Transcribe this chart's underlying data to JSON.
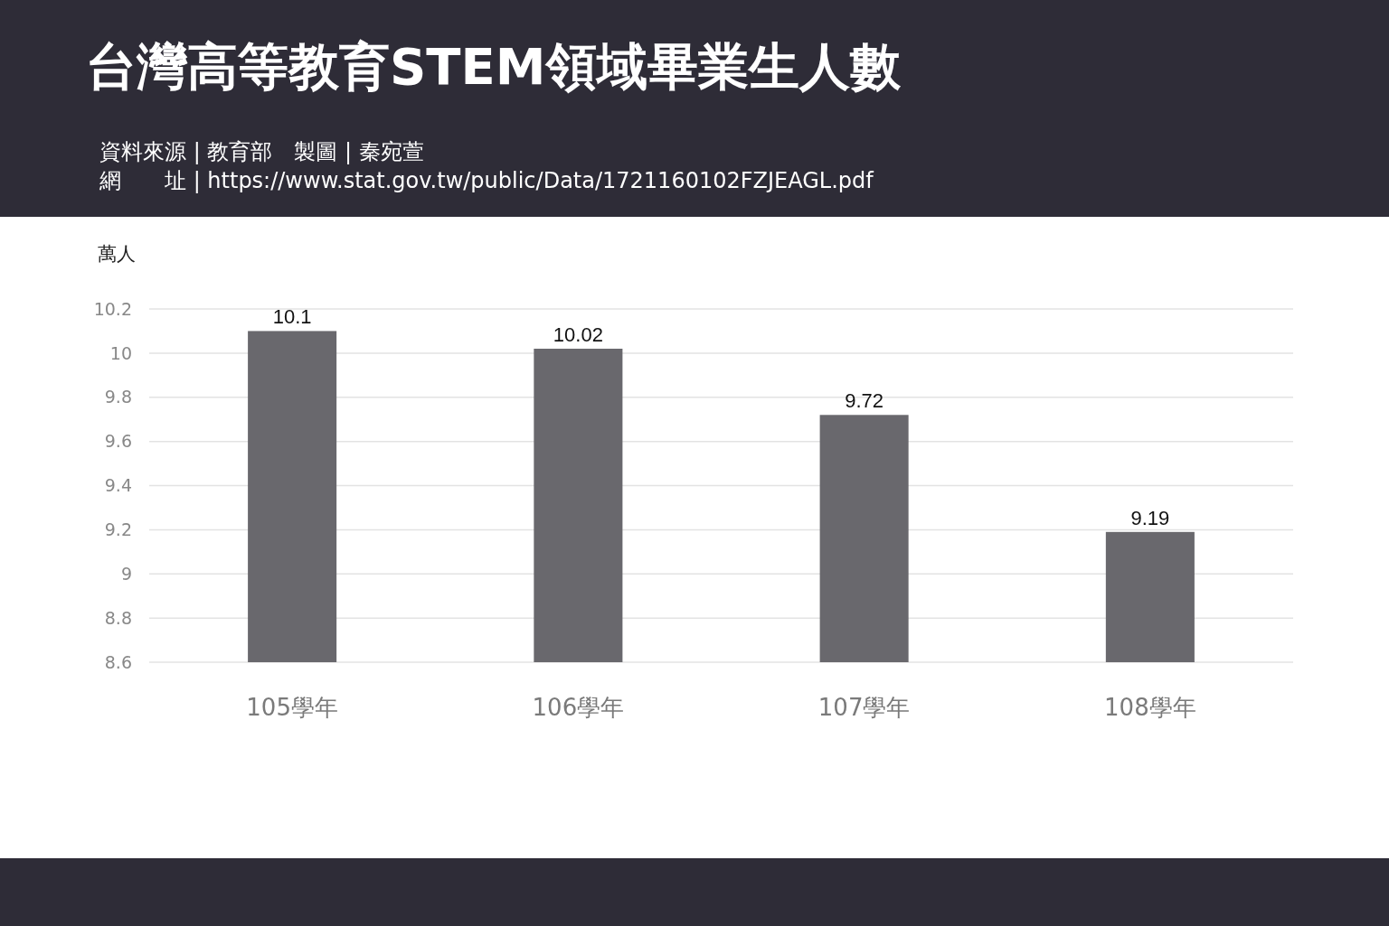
{
  "chart_data": {
    "type": "bar",
    "title": "台灣高等教育STEM領域畢業生人數",
    "ylabel": "萬人",
    "annotations": [
      "資料來源 | 教育部　製圖 | 秦宛萱",
      "網　　址 | https://www.stat.gov.tw/public/Data/1721160102FZJEAGL.pdf"
    ],
    "categories": [
      "105學年",
      "106學年",
      "107學年",
      "108學年"
    ],
    "values": [
      10.1,
      10.02,
      9.72,
      9.19
    ],
    "color": "#69686d",
    "ylim": [
      8.6,
      10.2
    ],
    "yticks": [
      8.6,
      8.8,
      9,
      9.2,
      9.4,
      9.6,
      9.8,
      10,
      10.2
    ],
    "grid": "y",
    "data_labels": true
  }
}
